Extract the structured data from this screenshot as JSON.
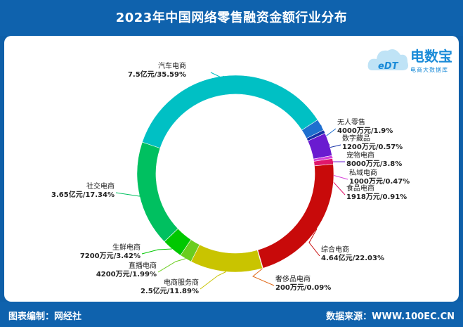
{
  "header": {
    "title": "2023年中国网络零售融资金额行业分布"
  },
  "logo": {
    "name": "电数宝",
    "subtitle": "电商大数据库",
    "mark": "eDT"
  },
  "footer": {
    "left": "图表编制：网经社",
    "right": "数据来源：WWW.100EC.CN"
  },
  "chart_data": {
    "type": "pie",
    "donut": true,
    "slices": [
      {
        "name": "汽车电商",
        "label": "7.5亿元/35.59%",
        "value": 35.59,
        "color": "#00c0c4"
      },
      {
        "name": "无人零售",
        "label": "4000万元/1.9%",
        "value": 1.9,
        "color": "#1f6fcf"
      },
      {
        "name": "数字藏品",
        "label": "1200万元/0.57%",
        "value": 0.57,
        "color": "#1530a8"
      },
      {
        "name": "宠物电商",
        "label": "8000万元/3.8%",
        "value": 3.8,
        "color": "#6a1bd0"
      },
      {
        "name": "私域电商",
        "label": "1000万元/0.47%",
        "value": 0.47,
        "color": "#d43fd8"
      },
      {
        "name": "食品电商",
        "label": "1918万元/0.91%",
        "value": 0.91,
        "color": "#e0176b"
      },
      {
        "name": "综合电商",
        "label": "4.64亿元/22.03%",
        "value": 22.03,
        "color": "#c80a0a"
      },
      {
        "name": "奢侈品电商",
        "label": "200万元/0.09%",
        "value": 0.09,
        "color": "#e06a1a"
      },
      {
        "name": "电商服务商",
        "label": "2.5亿元/11.89%",
        "value": 11.89,
        "color": "#c9c400"
      },
      {
        "name": "直播电商",
        "label": "4200万元/1.99%",
        "value": 1.99,
        "color": "#6acd1e"
      },
      {
        "name": "生鲜电商",
        "label": "7200万元/3.42%",
        "value": 3.42,
        "color": "#00c800"
      },
      {
        "name": "社交电商",
        "label": "3.65亿元/17.34%",
        "value": 17.34,
        "color": "#00c060"
      }
    ]
  }
}
